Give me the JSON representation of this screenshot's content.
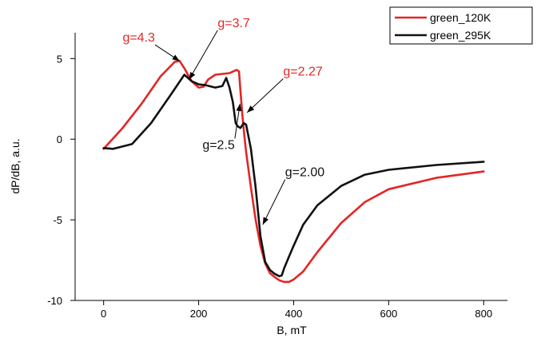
{
  "chart_data": {
    "type": "line",
    "xlabel": "B, mT",
    "ylabel": "dP/dB, a.u.",
    "xlim": [
      -60,
      850
    ],
    "ylim": [
      -10,
      6.6
    ],
    "xticks": [
      0,
      200,
      400,
      600,
      800
    ],
    "yticks": [
      -10,
      -5,
      0,
      5
    ],
    "grid": false,
    "legend_position": "top-right",
    "series": [
      {
        "name": "green_120K",
        "color": "#e32626",
        "x": [
          0,
          40,
          80,
          120,
          150,
          160,
          170,
          185,
          200,
          210,
          220,
          235,
          250,
          265,
          280,
          285,
          288,
          292,
          296,
          300,
          310,
          320,
          330,
          340,
          350,
          360,
          370,
          380,
          390,
          400,
          420,
          450,
          500,
          550,
          600,
          700,
          800
        ],
        "y": [
          -0.6,
          0.7,
          2.2,
          3.9,
          4.8,
          4.85,
          4.4,
          3.6,
          3.2,
          3.25,
          3.7,
          4.0,
          4.05,
          4.1,
          4.3,
          4.2,
          3.0,
          1.5,
          0.3,
          -0.8,
          -3.0,
          -5.0,
          -6.6,
          -7.7,
          -8.3,
          -8.55,
          -8.75,
          -8.85,
          -8.85,
          -8.7,
          -8.2,
          -7.0,
          -5.2,
          -3.9,
          -3.1,
          -2.4,
          -2.0
        ]
      },
      {
        "name": "green_295K",
        "color": "#111111",
        "x": [
          0,
          20,
          60,
          100,
          140,
          170,
          185,
          200,
          215,
          235,
          250,
          258,
          265,
          272,
          278,
          282,
          288,
          295,
          300,
          310,
          320,
          330,
          340,
          350,
          360,
          370,
          375,
          380,
          390,
          400,
          420,
          450,
          500,
          550,
          600,
          700,
          800
        ],
        "y": [
          -0.55,
          -0.6,
          -0.3,
          1.0,
          2.7,
          4.0,
          3.6,
          3.4,
          3.35,
          3.2,
          3.3,
          3.8,
          3.2,
          2.3,
          1.0,
          0.8,
          0.7,
          1.0,
          0.9,
          -0.6,
          -3.0,
          -6.0,
          -7.6,
          -8.1,
          -8.35,
          -8.5,
          -8.45,
          -8.0,
          -7.3,
          -6.6,
          -5.3,
          -4.1,
          -2.9,
          -2.2,
          -1.9,
          -1.6,
          -1.4
        ]
      }
    ],
    "annotations": [
      {
        "text": "g=4.3",
        "color": "#e32626",
        "x": 40,
        "y": 6.05,
        "arrow_to": [
          160,
          4.85
        ]
      },
      {
        "text": "g=3.7",
        "color": "#e32626",
        "x": 240,
        "y": 6.95,
        "arrow_to": [
          180,
          3.7
        ]
      },
      {
        "text": "g=2.27",
        "color": "#e32626",
        "x": 378,
        "y": 3.95,
        "arrow_to": [
          302,
          1.65
        ]
      },
      {
        "text": "g=2.5",
        "color": "#111111",
        "x": 208,
        "y": -0.6,
        "arrow_to": [
          287,
          2.2
        ]
      },
      {
        "text": "g=2.00",
        "color": "#111111",
        "x": 382,
        "y": -2.3,
        "arrow_to": [
          335,
          -5.3
        ]
      }
    ]
  }
}
